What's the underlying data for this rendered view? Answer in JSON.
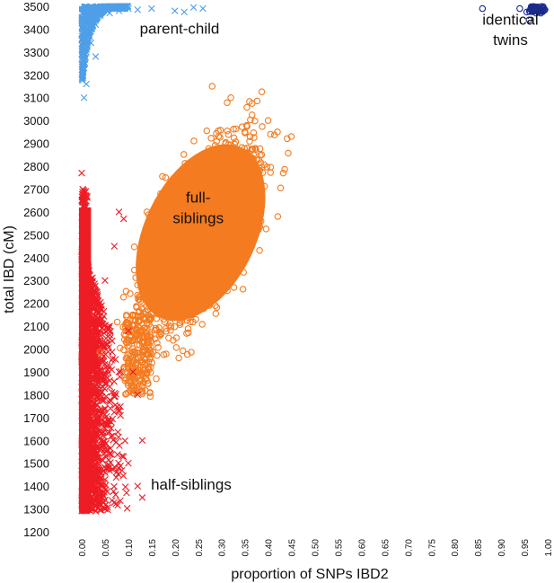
{
  "chart_data": {
    "type": "scatter",
    "xlabel": "proportion of SNPs IBD2",
    "ylabel": "total IBD (cM)",
    "xlim": [
      0.0,
      1.0
    ],
    "ylim": [
      1200,
      3500
    ],
    "x_ticks": [
      "0.00",
      "0.05",
      "0.10",
      "0.15",
      "0.20",
      "0.25",
      "0.30",
      "0.35",
      "0.40",
      "0.45",
      "0.50",
      "0.55",
      "0.60",
      "0.65",
      "0.70",
      "0.75",
      "0.80",
      "0.85",
      "0.90",
      "0.95",
      "1.00"
    ],
    "y_ticks": [
      "1200",
      "1300",
      "1400",
      "1500",
      "1600",
      "1700",
      "1800",
      "1900",
      "2000",
      "2100",
      "2200",
      "2300",
      "2400",
      "2500",
      "2600",
      "2700",
      "2800",
      "2900",
      "3000",
      "3100",
      "3200",
      "3300",
      "3400",
      "3500"
    ],
    "grid": false,
    "annotations": [
      {
        "text": "parent-child",
        "x": 0.21,
        "y": 3380
      },
      {
        "text": "identical",
        "x": 0.92,
        "y": 3420
      },
      {
        "text": "twins",
        "x": 0.92,
        "y": 3330
      },
      {
        "text": "full-",
        "x": 0.25,
        "y": 2640
      },
      {
        "text": "siblings",
        "x": 0.25,
        "y": 2550
      },
      {
        "text": "half-siblings",
        "x": 0.235,
        "y": 1385
      }
    ],
    "series": [
      {
        "key": "parent_child",
        "marker": "x",
        "color": "#4f9ee8",
        "points": [
          [
            0.005,
            3100
          ],
          [
            0.01,
            3160
          ],
          [
            0.005,
            3230
          ],
          [
            0.01,
            3300
          ],
          [
            0.02,
            3340
          ],
          [
            0.015,
            3380
          ],
          [
            0.03,
            3420
          ],
          [
            0.02,
            3450
          ],
          [
            0.04,
            3460
          ],
          [
            0.06,
            3470
          ],
          [
            0.08,
            3480
          ],
          [
            0.1,
            3490
          ],
          [
            0.12,
            3485
          ],
          [
            0.15,
            3490
          ],
          [
            0.2,
            3480
          ],
          [
            0.24,
            3495
          ],
          [
            0.26,
            3490
          ],
          [
            0.22,
            3475
          ],
          [
            0.03,
            3280
          ],
          [
            0.008,
            3360
          ]
        ]
      },
      {
        "key": "full_siblings",
        "marker": "o",
        "color": "#f47b20",
        "points": [
          [
            0.1,
            1950
          ],
          [
            0.12,
            1900
          ],
          [
            0.15,
            2200
          ],
          [
            0.2,
            2500
          ],
          [
            0.25,
            2650
          ],
          [
            0.3,
            2850
          ],
          [
            0.35,
            2950
          ],
          [
            0.4,
            3000
          ],
          [
            0.42,
            2950
          ],
          [
            0.45,
            2930
          ],
          [
            0.32,
            3100
          ],
          [
            0.28,
            3150
          ],
          [
            0.22,
            2300
          ],
          [
            0.13,
            2050
          ],
          [
            0.16,
            1870
          ],
          [
            0.1,
            1810
          ],
          [
            0.18,
            2750
          ],
          [
            0.14,
            2600
          ],
          [
            0.26,
            2380
          ],
          [
            0.36,
            2780
          ]
        ]
      },
      {
        "key": "half_siblings",
        "marker": "x",
        "color": "#ee1c25",
        "points": [
          [
            0.0,
            2770
          ],
          [
            0.0,
            2650
          ],
          [
            0.01,
            2500
          ],
          [
            0.02,
            2300
          ],
          [
            0.05,
            2300
          ],
          [
            0.08,
            2600
          ],
          [
            0.09,
            2570
          ],
          [
            0.07,
            2450
          ],
          [
            0.1,
            2080
          ],
          [
            0.11,
            1900
          ],
          [
            0.12,
            1800
          ],
          [
            0.13,
            1600
          ],
          [
            0.1,
            1500
          ],
          [
            0.12,
            1400
          ],
          [
            0.13,
            1350
          ],
          [
            0.05,
            1300
          ],
          [
            0.02,
            1300
          ],
          [
            0.03,
            1600
          ],
          [
            0.08,
            1900
          ],
          [
            0.06,
            2100
          ]
        ]
      },
      {
        "key": "identical_twins",
        "marker": "o",
        "color": "#1a2b8a",
        "points": [
          [
            0.86,
            3490
          ],
          [
            0.94,
            3490
          ],
          [
            0.96,
            3440
          ],
          [
            0.955,
            3475
          ],
          [
            0.97,
            3480
          ],
          [
            0.98,
            3485
          ],
          [
            0.99,
            3490
          ],
          [
            0.985,
            3470
          ],
          [
            0.965,
            3490
          ],
          [
            0.975,
            3470
          ]
        ]
      }
    ]
  }
}
